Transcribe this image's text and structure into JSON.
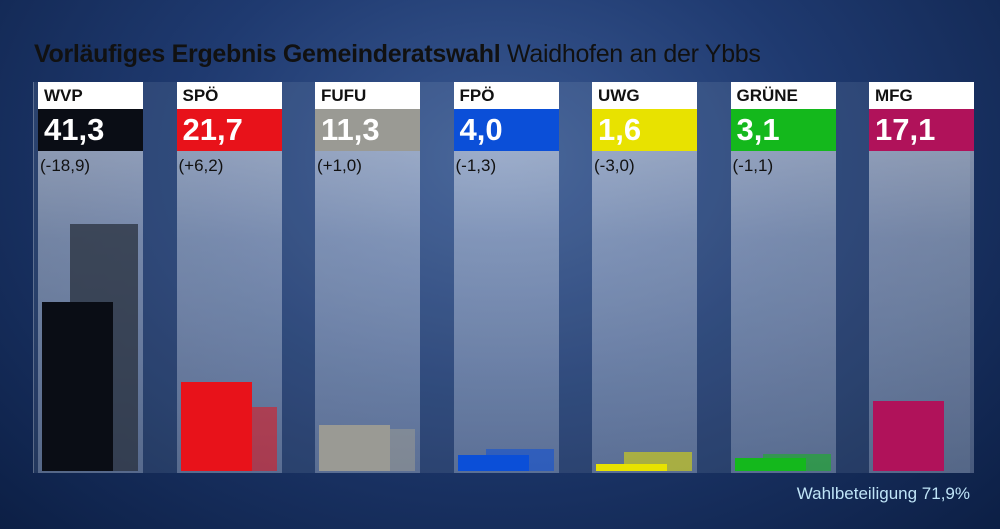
{
  "title": {
    "main": "Vorläufiges Ergebnis Gemeinderatswahl",
    "sub": "Waidhofen an der Ybbs"
  },
  "footer": {
    "label": "Wahlbeteiligung",
    "value": "71,9%"
  },
  "parties": [
    {
      "name": "WVP",
      "value_label": "41,3",
      "diff_label": "(-18,9)",
      "color": "#0a0d15"
    },
    {
      "name": "SPÖ",
      "value_label": "21,7",
      "diff_label": "(+6,2)",
      "color": "#e8121a"
    },
    {
      "name": "FUFU",
      "value_label": "11,3",
      "diff_label": "(+1,0)",
      "color": "#9a9a94"
    },
    {
      "name": "FPÖ",
      "value_label": "4,0",
      "diff_label": "(-1,3)",
      "color": "#0b4fd8"
    },
    {
      "name": "UWG",
      "value_label": "1,6",
      "diff_label": "(-3,0)",
      "color": "#e8e200"
    },
    {
      "name": "GRÜNE",
      "value_label": "3,1",
      "diff_label": "(-1,1)",
      "color": "#14b81c"
    },
    {
      "name": "MFG",
      "value_label": "17,1",
      "diff_label": "",
      "color": "#b0125a"
    }
  ],
  "chart_data": {
    "type": "bar",
    "categories": [
      "WVP",
      "SPÖ",
      "FUFU",
      "FPÖ",
      "UWG",
      "GRÜNE",
      "MFG"
    ],
    "series": [
      {
        "values": [
          41.3,
          21.7,
          11.3,
          4.0,
          1.6,
          3.1,
          17.1
        ]
      },
      {
        "values": [
          60.2,
          15.5,
          10.3,
          5.3,
          4.6,
          4.2,
          null
        ]
      }
    ],
    "ylim": [
      0,
      70
    ],
    "legend": "none",
    "grid": false
  }
}
